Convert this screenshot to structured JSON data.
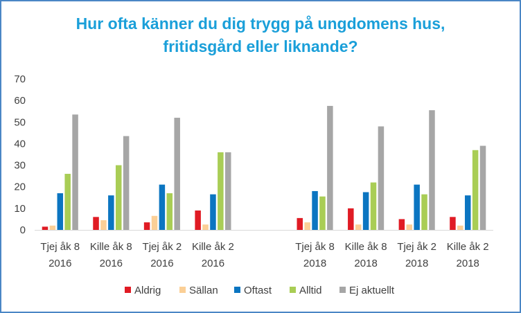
{
  "chart_data": {
    "type": "bar",
    "title": "Hur ofta känner du dig trygg på ungdomens hus, fritidsgård eller liknande?",
    "title_lines": [
      "Hur ofta känner du dig trygg på ungdomens hus,",
      "fritidsgård eller liknande?"
    ],
    "categories": [
      [
        "Tjej åk 8",
        "2016"
      ],
      [
        "Kille åk 8",
        "2016"
      ],
      [
        "Tjej åk 2",
        "2016"
      ],
      [
        "Kille åk 2",
        "2016"
      ],
      [
        "",
        ""
      ],
      [
        "Tjej åk 8",
        "2018"
      ],
      [
        "Kille åk 8",
        "2018"
      ],
      [
        "Tjej åk 2",
        "2018"
      ],
      [
        "Kille åk 2",
        "2018"
      ]
    ],
    "series": [
      {
        "name": "Aldrig",
        "color": "#e01b24",
        "values": [
          1.5,
          6,
          3.5,
          9,
          null,
          5.5,
          10,
          5,
          6
        ]
      },
      {
        "name": "Sällan",
        "color": "#fbcf96",
        "values": [
          2,
          4.5,
          6.5,
          2.5,
          null,
          3.5,
          2.5,
          2.5,
          2
        ]
      },
      {
        "name": "Oftast",
        "color": "#0b75c1",
        "values": [
          17,
          16,
          21,
          16.5,
          null,
          18,
          17.5,
          21,
          16
        ]
      },
      {
        "name": "Alltid",
        "color": "#a9cd55",
        "values": [
          26,
          30,
          17,
          36,
          null,
          15.5,
          22,
          16.5,
          37
        ]
      },
      {
        "name": "Ej aktuellt",
        "color": "#a6a6a6",
        "values": [
          53.5,
          43.5,
          52,
          36,
          null,
          57.5,
          48,
          55.5,
          39
        ]
      }
    ],
    "ylim": [
      0,
      70
    ],
    "yticks": [
      0,
      10,
      20,
      30,
      40,
      50,
      60,
      70
    ],
    "xlabel": "",
    "ylabel": "",
    "grid": false,
    "legend": "bottom"
  }
}
